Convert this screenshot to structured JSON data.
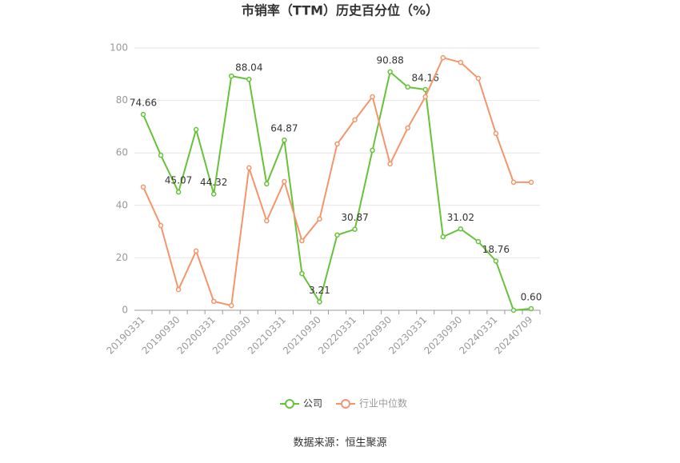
{
  "chart_data": {
    "type": "line",
    "title": "市销率（TTM）历史百分位（%）",
    "source": "数据来源：恒生聚源",
    "categories": [
      "20190331",
      null,
      "20190930",
      null,
      "20200331",
      null,
      "20200930",
      null,
      "20210331",
      null,
      "20210930",
      null,
      "20220331",
      null,
      "20220930",
      null,
      "20230331",
      null,
      "20230930",
      null,
      "20240331",
      null,
      "20240709"
    ],
    "series": [
      {
        "name": "公司",
        "color": "#67c23a",
        "values": [
          74.66,
          59.1,
          45.07,
          68.9,
          44.32,
          89.3,
          88.04,
          48.2,
          64.87,
          14.0,
          3.21,
          28.7,
          30.87,
          61.0,
          90.88,
          85.1,
          84.16,
          28.0,
          31.02,
          26.2,
          18.76,
          0,
          0.6
        ],
        "value_labels": [
          "74.66",
          null,
          "45.07",
          null,
          "44.32",
          null,
          "88.04",
          null,
          "64.87",
          null,
          "3.21",
          null,
          "30.87",
          null,
          "90.88",
          null,
          "84.16",
          null,
          "31.02",
          null,
          "18.76",
          null,
          "0.60"
        ]
      },
      {
        "name": "行业中位数",
        "color": "#f4956b",
        "values": [
          47.0,
          32.3,
          7.9,
          22.6,
          3.4,
          1.8,
          54.3,
          34.1,
          49.1,
          26.5,
          34.8,
          63.4,
          72.6,
          81.4,
          55.8,
          69.5,
          81.4,
          96.3,
          94.5,
          88.4,
          67.4,
          48.8,
          48.8
        ]
      }
    ],
    "ylim": [
      0,
      100
    ],
    "yticks": [
      0,
      20,
      40,
      60,
      80,
      100
    ],
    "grid": true
  }
}
